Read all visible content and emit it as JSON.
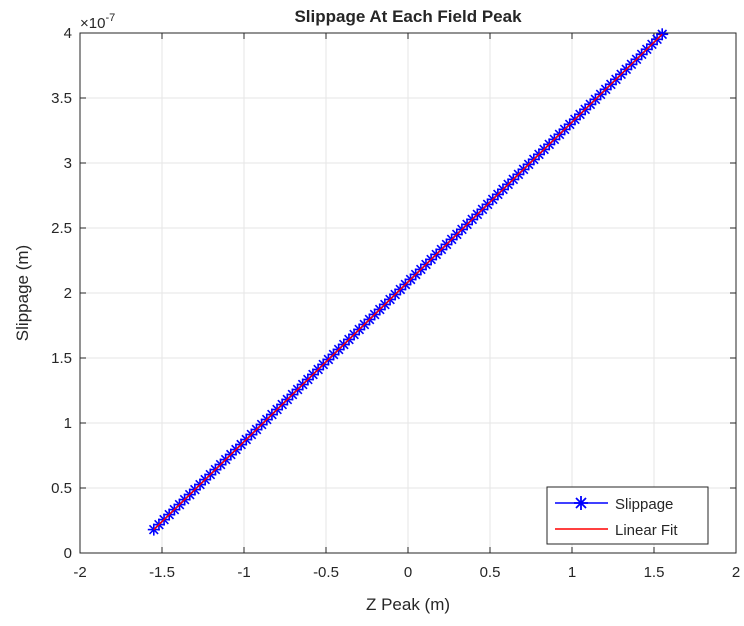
{
  "chart_data": {
    "type": "line",
    "title": "Slippage At Each Field Peak",
    "xlabel": "Z Peak (m)",
    "ylabel": "Slippage (m)",
    "y_exponent_label": "×10",
    "y_exponent_power": "-7",
    "xlim": [
      -2,
      2
    ],
    "ylim": [
      0,
      4
    ],
    "xticks": [
      -2,
      -1.5,
      -1,
      -0.5,
      0,
      0.5,
      1,
      1.5,
      2
    ],
    "xtick_labels": [
      "-2",
      "-1.5",
      "-1",
      "-0.5",
      "0",
      "0.5",
      "1",
      "1.5",
      "2"
    ],
    "yticks": [
      0,
      0.5,
      1,
      1.5,
      2,
      2.5,
      3,
      3.5,
      4
    ],
    "ytick_labels": [
      "0",
      "0.5",
      "1",
      "1.5",
      "2",
      "2.5",
      "3",
      "3.5",
      "4"
    ],
    "grid": true,
    "legend_position": "bottom-right",
    "y_scale_factor": 1e-07,
    "series": [
      {
        "name": "Slippage",
        "color": "#0000ff",
        "marker": "asterisk",
        "x_range": [
          -1.55,
          1.55
        ],
        "y_range": [
          0.18,
          3.99
        ],
        "num_points": 100
      },
      {
        "name": "Linear Fit",
        "color": "#ff0000",
        "marker": "none",
        "x": [
          -1.55,
          1.55
        ],
        "y": [
          0.18,
          3.99
        ]
      }
    ]
  }
}
